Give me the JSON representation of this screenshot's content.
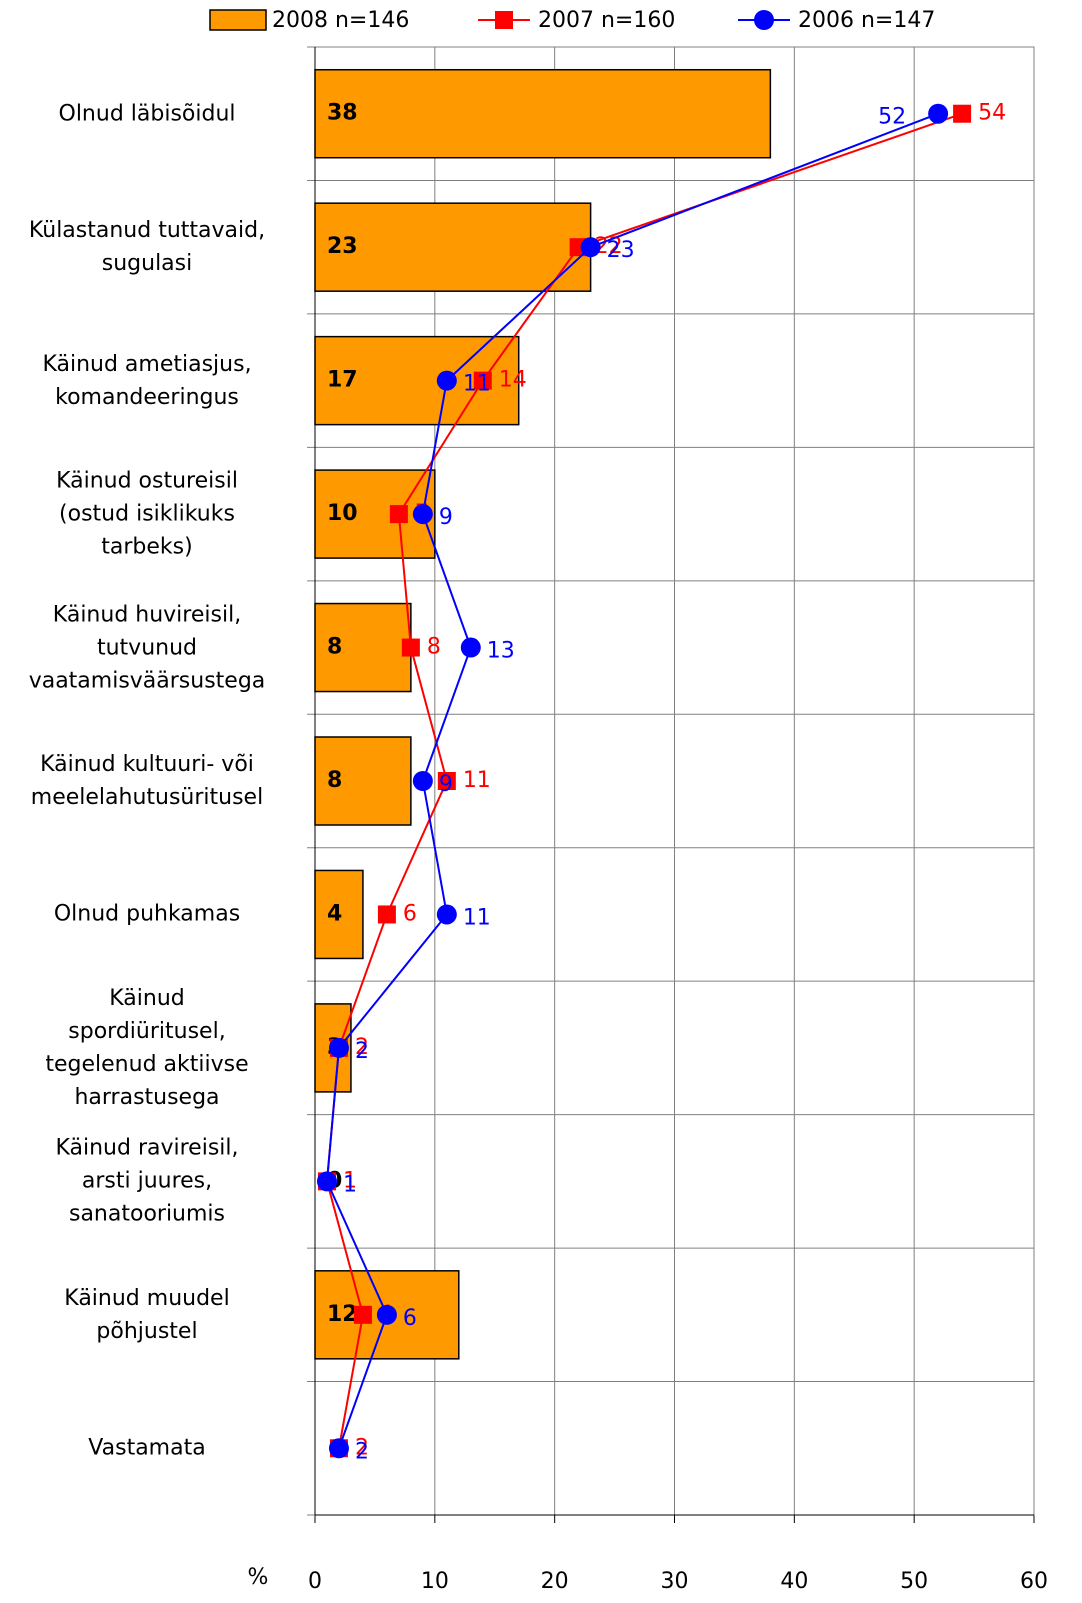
{
  "chart_data": {
    "type": "bar",
    "x_label": "%",
    "categories": [
      "Olnud läbisõidul",
      "Külastanud tuttavaid,\nsugulasi",
      "Käinud ametiasjus,\nkomandeeringus",
      "Käinud ostureisil\n(ostud isiklikuks\ntarbeks)",
      "Käinud  huvireisil,\ntutvunud\nvaatamisväärsustega",
      "Käinud kultuuri- või\nmeelelahutusüritusel",
      "Olnud puhkamas",
      "Käinud\nspordiüritusel,\ntegelenud aktiivse\nharrastusega",
      "Käinud ravireisil,\narsti juures,\nsanatooriumis",
      "Käinud muudel\npõhjustel",
      "Vastamata"
    ],
    "series": [
      {
        "name": "2008 n=146",
        "type": "bar",
        "color": "#ff9900",
        "values": [
          38,
          23,
          17,
          10,
          8,
          8,
          4,
          3,
          0,
          12,
          null
        ]
      },
      {
        "name": "2007 n=160",
        "type": "line",
        "marker": "square",
        "color": "#ff0000",
        "values": [
          54,
          22,
          14,
          7,
          8,
          11,
          6,
          2,
          1,
          4,
          2
        ]
      },
      {
        "name": "2006 n=147",
        "type": "line",
        "marker": "circle",
        "color": "#0000ff",
        "values": [
          52,
          23,
          11,
          9,
          13,
          9,
          11,
          2,
          1,
          6,
          2
        ]
      }
    ],
    "xlim": [
      0,
      60
    ],
    "xticks": [
      0,
      10,
      20,
      30,
      40,
      50,
      60
    ],
    "grid": true
  }
}
